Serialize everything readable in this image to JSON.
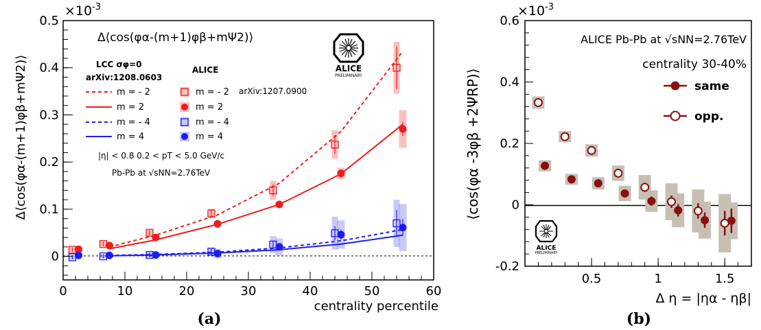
{
  "chart_data": [
    {
      "type": "scatter",
      "panel_label": "(a)",
      "exponent_label": "×10",
      "exponent_power": "-3",
      "xlabel": "centrality percentile",
      "ylabel": "Δ⟨cos(φα-(m+1)φβ+mΨ2)⟩",
      "xlim": [
        0,
        60
      ],
      "ylim": [
        -0.05,
        0.5
      ],
      "xticks": [
        0,
        10,
        20,
        30,
        40,
        50,
        60
      ],
      "yticks": [
        0,
        0.1,
        0.2,
        0.3,
        0.4,
        0.5
      ],
      "xtick_labels": [
        "0",
        "10",
        "20",
        "30",
        "40",
        "50",
        "60"
      ],
      "ytick_labels": [
        "0",
        "0.1",
        "0.2",
        "0.3",
        "0.4",
        "0.5"
      ],
      "zero_line": true,
      "title": "Δ⟨cos(φα-(m+1)φβ+mΨ2)⟩",
      "legend_lcc_title": "LCC  σφ=0",
      "legend_lcc_ref": "arXiv:1208.0603",
      "legend_alice_title": "ALICE",
      "legend_alice_ref": "arXiv:1207.0900",
      "cuts_text": "|η| < 0.8   0.2 < pT < 5.0 GeV/c",
      "system_text": "Pb-Pb at √sNN=2.76TeV",
      "logo_text": "ALICE",
      "logo_subtext": "PRELIMINARY",
      "colors": {
        "red": "#ee1c1c",
        "blue": "#1c1cee"
      },
      "curves": [
        {
          "name": "m = - 2",
          "color": "#ee1c1c",
          "dash": true,
          "x": [
            7.5,
            15,
            25,
            35,
            45,
            55
          ],
          "y": [
            0.02,
            0.045,
            0.088,
            0.155,
            0.265,
            0.435
          ]
        },
        {
          "name": "m = 2",
          "color": "#ee1c1c",
          "dash": false,
          "x": [
            7.5,
            15,
            25,
            35,
            45,
            55
          ],
          "y": [
            0.016,
            0.035,
            0.068,
            0.11,
            0.175,
            0.28
          ]
        },
        {
          "name": "m = - 4",
          "color": "#1c1cee",
          "dash": true,
          "x": [
            7.5,
            15,
            25,
            35,
            45,
            55
          ],
          "y": [
            0.002,
            0.004,
            0.009,
            0.018,
            0.033,
            0.057
          ]
        },
        {
          "name": "m = 4",
          "color": "#1c1cee",
          "dash": false,
          "x": [
            7.5,
            15,
            25,
            35,
            45,
            55
          ],
          "y": [
            0.001,
            0.003,
            0.007,
            0.014,
            0.026,
            0.045
          ]
        }
      ],
      "series": [
        {
          "name": "m = - 2",
          "marker": "open-square",
          "color": "#ee1c1c",
          "x": [
            1.5,
            6.5,
            14,
            24,
            34,
            44,
            54
          ],
          "y": [
            0.014,
            0.026,
            0.05,
            0.091,
            0.14,
            0.237,
            0.4
          ],
          "err": [
            0.004,
            0.005,
            0.006,
            0.008,
            0.012,
            0.02,
            0.045
          ],
          "sys": [
            0.006,
            0.006,
            0.006,
            0.01,
            0.02,
            0.03,
            0.055
          ]
        },
        {
          "name": "m = 2",
          "marker": "filled-circle",
          "color": "#ee1c1c",
          "x": [
            2.5,
            7.5,
            15,
            25,
            35,
            45,
            55
          ],
          "y": [
            0.015,
            0.023,
            0.04,
            0.069,
            0.11,
            0.176,
            0.27
          ],
          "err": [
            0.002,
            0.003,
            0.003,
            0.004,
            0.005,
            0.007,
            0.015
          ],
          "sys": [
            0.002,
            0.003,
            0.005,
            0.005,
            0.006,
            0.012,
            0.04
          ]
        },
        {
          "name": "m = - 4",
          "marker": "open-square",
          "color": "#1c1cee",
          "x": [
            1.5,
            6.5,
            14,
            24,
            34,
            44,
            54
          ],
          "y": [
            -0.002,
            0.0,
            0.003,
            0.01,
            0.025,
            0.049,
            0.07
          ],
          "err": [
            0.004,
            0.004,
            0.005,
            0.006,
            0.008,
            0.015,
            0.028
          ],
          "sys": [
            0.005,
            0.005,
            0.006,
            0.008,
            0.018,
            0.035,
            0.05
          ]
        },
        {
          "name": "m = 4",
          "marker": "filled-circle",
          "color": "#1c1cee",
          "x": [
            2.5,
            7.5,
            15,
            25,
            35,
            45,
            55
          ],
          "y": [
            0.002,
            0.002,
            0.003,
            0.006,
            0.02,
            0.046,
            0.061
          ],
          "err": [
            0.002,
            0.002,
            0.003,
            0.004,
            0.006,
            0.01,
            0.018
          ],
          "sys": [
            0.003,
            0.004,
            0.006,
            0.01,
            0.018,
            0.03,
            0.05
          ]
        }
      ]
    },
    {
      "type": "scatter",
      "panel_label": "(b)",
      "exponent_label": "×10",
      "exponent_power": "-3",
      "xlabel": "Δ η = |ηα - ηβ|",
      "ylabel": "⟨cos(φα -3φβ +2ΨRP)⟩",
      "xlim": [
        0,
        1.7
      ],
      "ylim": [
        -0.2,
        0.6
      ],
      "xticks": [
        0.5,
        1,
        1.5
      ],
      "yticks": [
        -0.2,
        0,
        0.2,
        0.4,
        0.6
      ],
      "xtick_labels": [
        "0.5",
        "1",
        "1.5"
      ],
      "ytick_labels": [
        "-0.2",
        "0",
        "0.2",
        "0.4",
        "0.6"
      ],
      "zero_line": true,
      "system_text": "ALICE Pb-Pb at √sNN=2.76TeV",
      "centrality_text": "centrality 30-40%",
      "logo_text": "ALICE",
      "logo_subtext": "PRELIMINARY",
      "colors": {
        "marker": "#8b0f0f",
        "band": "#c7bfb4"
      },
      "series": [
        {
          "name": "same",
          "marker": "filled-circle",
          "x": [
            0.15,
            0.35,
            0.55,
            0.75,
            0.95,
            1.15,
            1.35,
            1.55
          ],
          "y": [
            0.127,
            0.083,
            0.07,
            0.037,
            0.012,
            -0.018,
            -0.05,
            -0.052
          ],
          "err": [
            0.006,
            0.006,
            0.008,
            0.01,
            0.015,
            0.02,
            0.025,
            0.04
          ],
          "sys": [
            0.018,
            0.018,
            0.02,
            0.025,
            0.035,
            0.055,
            0.06,
            0.06
          ]
        },
        {
          "name": "opp.",
          "marker": "open-circle",
          "x": [
            0.1,
            0.3,
            0.5,
            0.7,
            0.9,
            1.1,
            1.3,
            1.5
          ],
          "y": [
            0.333,
            0.222,
            0.177,
            0.103,
            0.057,
            0.01,
            -0.02,
            -0.06
          ],
          "err": [
            0.006,
            0.006,
            0.008,
            0.01,
            0.015,
            0.02,
            0.025,
            0.04
          ],
          "sys": [
            0.02,
            0.018,
            0.02,
            0.025,
            0.04,
            0.06,
            0.07,
            0.095
          ]
        }
      ]
    }
  ]
}
